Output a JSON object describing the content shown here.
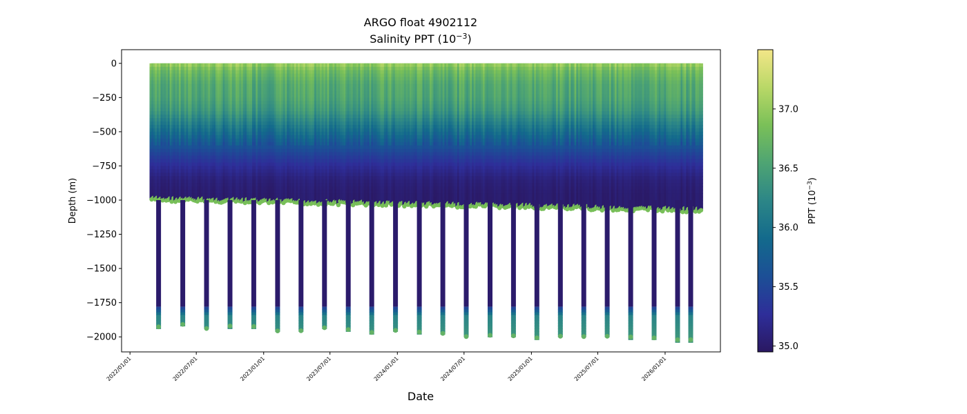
{
  "chart_data": {
    "type": "scatter",
    "title": "ARGO float 4902112",
    "subtitle_prefix": "Salinity PPT (10",
    "subtitle_exp": "−3",
    "subtitle_suffix": ")",
    "xlabel": "Date",
    "ylabel": "Depth (m)",
    "colorbar_label_prefix": "PPT (10",
    "colorbar_label_exp": "−3",
    "colorbar_label_suffix": ")",
    "xlim": [
      "2021-12-09",
      "2026-06-01"
    ],
    "ylim": [
      -2110,
      100
    ],
    "x_ticks": [
      "2022/01/01",
      "2022/07/01",
      "2023/01/01",
      "2023/07/01",
      "2024/01/01",
      "2024/07/01",
      "2025/01/01",
      "2025/07/01",
      "2026/01/01"
    ],
    "y_ticks": [
      {
        "value": 0,
        "label": "0"
      },
      {
        "value": -250,
        "label": "−250"
      },
      {
        "value": -500,
        "label": "−500"
      },
      {
        "value": -750,
        "label": "−750"
      },
      {
        "value": -1000,
        "label": "−1000"
      },
      {
        "value": -1250,
        "label": "−1250"
      },
      {
        "value": -1500,
        "label": "−1500"
      },
      {
        "value": -1750,
        "label": "−1750"
      },
      {
        "value": -2000,
        "label": "−2000"
      }
    ],
    "colorbar": {
      "colormap": "haline",
      "range": [
        34.95,
        37.5
      ],
      "ticks": [
        {
          "value": 35.0,
          "label": "35.0"
        },
        {
          "value": 35.5,
          "label": "35.5"
        },
        {
          "value": 36.0,
          "label": "36.0"
        },
        {
          "value": 36.5,
          "label": "36.5"
        },
        {
          "value": 37.0,
          "label": "37.0"
        }
      ],
      "stops": [
        "#2a1862",
        "#2e2e99",
        "#1c4f96",
        "#136a8c",
        "#2c8687",
        "#4ea473",
        "#7ac058",
        "#b9d867",
        "#f3e688"
      ]
    },
    "profile_dates": {
      "first": "2022-03-01",
      "last": "2026-04-11",
      "interval_days": 5
    },
    "deep_profile_dates": [
      "2022-03-20",
      "2022-05-25",
      "2022-07-29",
      "2022-10-01",
      "2022-12-05",
      "2023-02-08",
      "2023-04-13",
      "2023-06-16",
      "2023-08-20",
      "2023-10-23",
      "2023-12-27",
      "2024-03-01",
      "2024-05-04",
      "2024-07-07",
      "2024-09-10",
      "2024-11-13",
      "2025-01-16",
      "2025-03-21",
      "2025-05-24",
      "2025-07-27",
      "2025-09-29",
      "2025-12-02",
      "2026-02-04",
      "2026-03-12"
    ],
    "profile_bottom_depth_m": [
      -980,
      -1060
    ],
    "deep_profile_bottom_depth_m": [
      -1900,
      -2010
    ],
    "salinity_profile": [
      {
        "depth": 0,
        "value": 37.05
      },
      {
        "depth": -50,
        "value": 36.8
      },
      {
        "depth": -150,
        "value": 36.6
      },
      {
        "depth": -250,
        "value": 36.55
      },
      {
        "depth": -350,
        "value": 36.4
      },
      {
        "depth": -450,
        "value": 36.1
      },
      {
        "depth": -550,
        "value": 35.8
      },
      {
        "depth": -650,
        "value": 35.5
      },
      {
        "depth": -750,
        "value": 35.25
      },
      {
        "depth": -850,
        "value": 35.08
      },
      {
        "depth": -950,
        "value": 35.02
      },
      {
        "depth": -1200,
        "value": 35.0
      },
      {
        "depth": -1750,
        "value": 35.05
      },
      {
        "depth": -1850,
        "value": 36.2
      },
      {
        "depth": -2010,
        "value": 36.4
      }
    ],
    "grid": false
  }
}
